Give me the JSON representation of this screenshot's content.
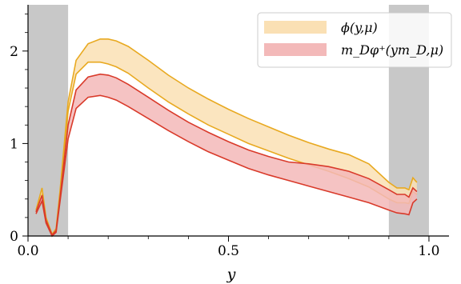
{
  "chart_data": {
    "type": "area",
    "xlabel": "y",
    "ylabel": "",
    "xlim": [
      0.0,
      1.05
    ],
    "ylim": [
      0.0,
      2.5
    ],
    "x_ticks": [
      0.0,
      0.5,
      1.0
    ],
    "x_tick_labels": [
      "0.0",
      "0.5",
      "1.0"
    ],
    "y_ticks": [
      0,
      1,
      2
    ],
    "y_tick_labels": [
      "0",
      "1",
      "2"
    ],
    "shaded_regions": [
      {
        "x_start": 0.0,
        "x_end": 0.1,
        "color": "#c8c8c8"
      },
      {
        "x_start": 0.9,
        "x_end": 1.0,
        "color": "#c8c8c8"
      }
    ],
    "legend_position": "top-right",
    "series": [
      {
        "name": "ϕ(y,μ)",
        "fill_color": "#fae0b4",
        "line_color": "#e8a920",
        "x": [
          0.02,
          0.035,
          0.045,
          0.06,
          0.07,
          0.08,
          0.1,
          0.12,
          0.15,
          0.18,
          0.2,
          0.22,
          0.25,
          0.3,
          0.35,
          0.4,
          0.45,
          0.5,
          0.55,
          0.6,
          0.65,
          0.7,
          0.75,
          0.8,
          0.85,
          0.9,
          0.92,
          0.94,
          0.95,
          0.96,
          0.97
        ],
        "upper": [
          0.28,
          0.52,
          0.2,
          0.02,
          0.08,
          0.5,
          1.45,
          1.9,
          2.08,
          2.13,
          2.13,
          2.11,
          2.05,
          1.9,
          1.74,
          1.6,
          1.48,
          1.37,
          1.27,
          1.18,
          1.09,
          1.01,
          0.94,
          0.88,
          0.78,
          0.58,
          0.52,
          0.52,
          0.5,
          0.63,
          0.58
        ],
        "lower": [
          0.28,
          0.44,
          0.16,
          0.0,
          0.05,
          0.45,
          1.35,
          1.75,
          1.88,
          1.88,
          1.86,
          1.83,
          1.76,
          1.6,
          1.45,
          1.32,
          1.2,
          1.1,
          1.0,
          0.92,
          0.84,
          0.77,
          0.7,
          0.62,
          0.53,
          0.4,
          0.36,
          0.36,
          0.35,
          0.48,
          0.45
        ]
      },
      {
        "name": "m_Dφ⁺(ym_D,μ)",
        "fill_color": "#f3b9b9",
        "line_color": "#d93a2a",
        "x": [
          0.02,
          0.035,
          0.045,
          0.06,
          0.07,
          0.08,
          0.1,
          0.12,
          0.15,
          0.18,
          0.2,
          0.22,
          0.25,
          0.3,
          0.35,
          0.4,
          0.45,
          0.5,
          0.55,
          0.6,
          0.65,
          0.7,
          0.75,
          0.8,
          0.85,
          0.9,
          0.92,
          0.94,
          0.95,
          0.96,
          0.97
        ],
        "upper": [
          0.26,
          0.44,
          0.17,
          0.01,
          0.06,
          0.42,
          1.2,
          1.58,
          1.72,
          1.75,
          1.74,
          1.71,
          1.64,
          1.5,
          1.36,
          1.23,
          1.12,
          1.02,
          0.93,
          0.86,
          0.8,
          0.78,
          0.75,
          0.7,
          0.62,
          0.5,
          0.45,
          0.45,
          0.42,
          0.52,
          0.48
        ],
        "lower": [
          0.24,
          0.38,
          0.14,
          0.0,
          0.04,
          0.38,
          1.05,
          1.38,
          1.5,
          1.52,
          1.5,
          1.47,
          1.4,
          1.27,
          1.14,
          1.02,
          0.91,
          0.82,
          0.73,
          0.66,
          0.6,
          0.54,
          0.48,
          0.42,
          0.36,
          0.28,
          0.25,
          0.24,
          0.23,
          0.36,
          0.4
        ]
      }
    ]
  }
}
